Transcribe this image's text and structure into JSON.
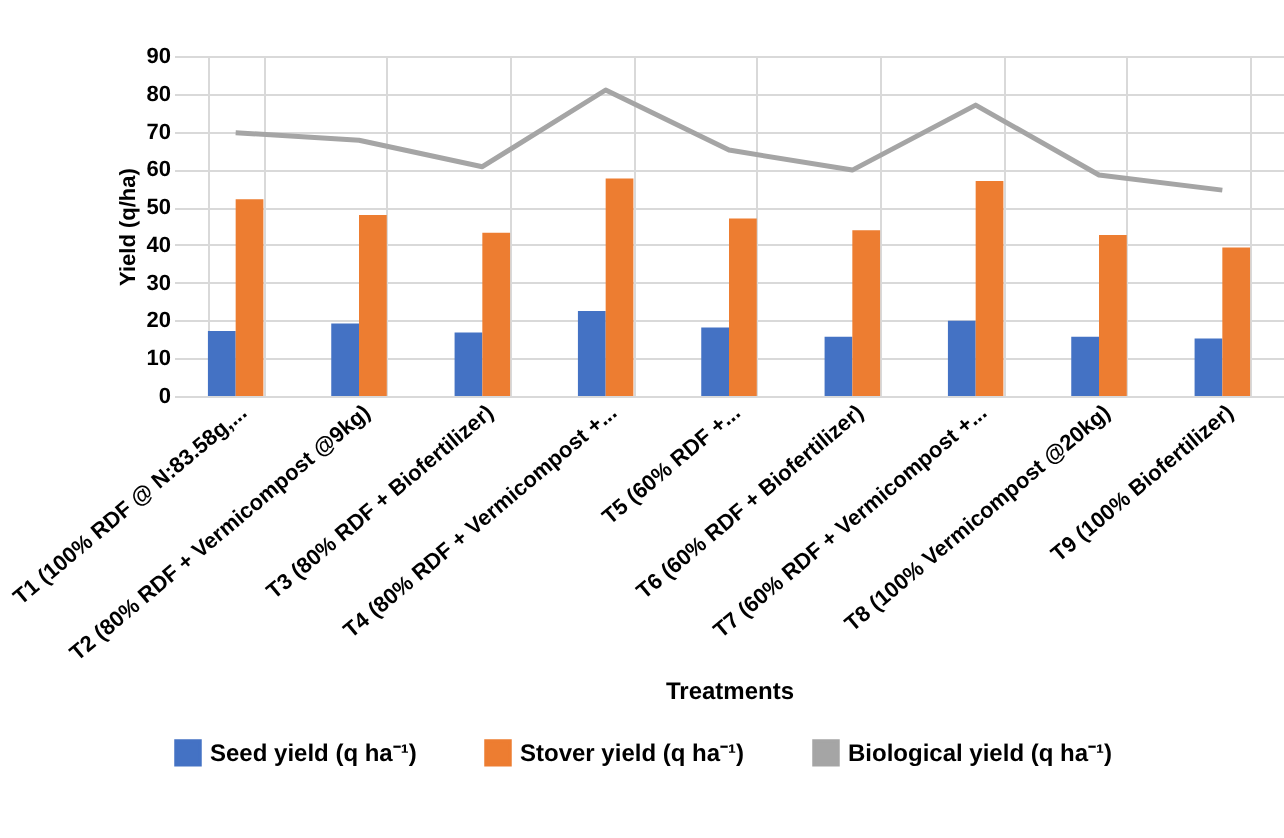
{
  "chart_data": {
    "type": "bar",
    "xlabel": "Treatments",
    "ylabel": "Yield (q/ha)",
    "categories": [
      "T1 (100% RDF @ N:83.58g,...",
      "T2 (80% RDF + Vermicompost @9kg)",
      "T3 (80% RDF + Biofertilizer)",
      "T4 (80% RDF + Vermicompost +...",
      "T5 (60% RDF +...",
      "T6 (60% RDF + Biofertilizer)",
      "T7 (60% RDF + Vermicompost +...",
      "T8 (100% Vermicompost @20kg)",
      "T9 (100% Biofertilizer)"
    ],
    "series": [
      {
        "name": "Seed yield (q ha⁻¹)",
        "color": "#4472c4",
        "values": [
          17.2,
          19.2,
          16.8,
          22.5,
          18.1,
          15.7,
          19.9,
          15.7,
          15.2
        ]
      },
      {
        "name": "Stover yield (q ha⁻¹)",
        "color": "#ed7d31",
        "values": [
          52.1,
          47.9,
          43.2,
          57.6,
          47.0,
          43.9,
          56.9,
          42.6,
          39.3
        ]
      },
      {
        "name": "Biological yield (q ha⁻¹)",
        "type": "line",
        "color": "#a5a5a5",
        "values": [
          69.7,
          67.7,
          60.7,
          81.0,
          65.1,
          59.8,
          77.0,
          58.5,
          54.5
        ]
      }
    ],
    "ylim": [
      0,
      90
    ],
    "yticks": [
      0,
      10,
      20,
      30,
      40,
      50,
      60,
      70,
      80,
      90
    ],
    "grid": true,
    "legend": "bottom",
    "marker": "none",
    "line_style": "solid"
  }
}
